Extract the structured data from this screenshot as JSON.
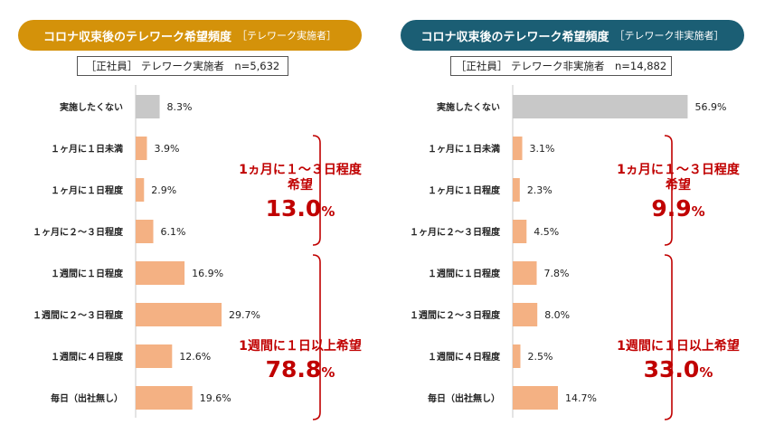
{
  "colors": {
    "bar_not_want": "#c8c8c8",
    "bar_want": "#f4b183",
    "title_left": "#d4920a",
    "title_right": "#1b5e74",
    "accent_red": "#c00000"
  },
  "left": {
    "title": "コロナ収束後のテレワーク希望頻度",
    "title_sub": "［テレワーク実施者］",
    "meta": "［正社員］ テレワーク実施者　n=5,632",
    "summary_monthly": {
      "label_line1": "1ヵ月に１～３日程度",
      "label_line2": "希望",
      "value": "13.0",
      "unit": "%"
    },
    "summary_weekly": {
      "label": "1週間に１日以上希望",
      "value": "78.8",
      "unit": "%"
    }
  },
  "right": {
    "title": "コロナ収束後のテレワーク希望頻度",
    "title_sub": "［テレワーク非実施者］",
    "meta": "［正社員］ テレワーク非実施者　n=14,882",
    "summary_monthly": {
      "label_line1": "1ヵ月に１～３日程度",
      "label_line2": "希望",
      "value": "9.9",
      "unit": "%"
    },
    "summary_weekly": {
      "label": "1週間に１日以上希望",
      "value": "33.0",
      "unit": "%"
    }
  },
  "chart_data": [
    {
      "type": "bar",
      "orientation": "horizontal",
      "title": "コロナ収束後のテレワーク希望頻度 ［テレワーク実施者］",
      "categories": [
        "実施したくない",
        "１ヶ月に１日未満",
        "１ヶ月に１日程度",
        "１ヶ月に２～３日程度",
        "１週間に１日程度",
        "１週間に２～３日程度",
        "１週間に４日程度",
        "毎日（出社無し）"
      ],
      "values": [
        8.3,
        3.9,
        2.9,
        6.1,
        16.9,
        29.7,
        12.6,
        19.6
      ],
      "value_labels": [
        "8.3%",
        "3.9%",
        "2.9%",
        "6.1%",
        "16.9%",
        "29.7%",
        "12.6%",
        "19.6%"
      ],
      "value_suffix": "%"
    },
    {
      "type": "bar",
      "orientation": "horizontal",
      "title": "コロナ収束後のテレワーク希望頻度 ［テレワーク非実施者］",
      "categories": [
        "実施したくない",
        "１ヶ月に１日未満",
        "１ヶ月に１日程度",
        "１ヶ月に２～３日程度",
        "１週間に１日程度",
        "１週間に２～３日程度",
        "１週間に４日程度",
        "毎日（出社無し）"
      ],
      "values": [
        56.9,
        3.1,
        2.3,
        4.5,
        7.8,
        8.0,
        2.5,
        14.7
      ],
      "value_labels": [
        "56.9%",
        "3.1%",
        "2.3%",
        "4.5%",
        "7.8%",
        "8.0%",
        "2.5%",
        "14.7%"
      ],
      "value_suffix": "%"
    }
  ]
}
